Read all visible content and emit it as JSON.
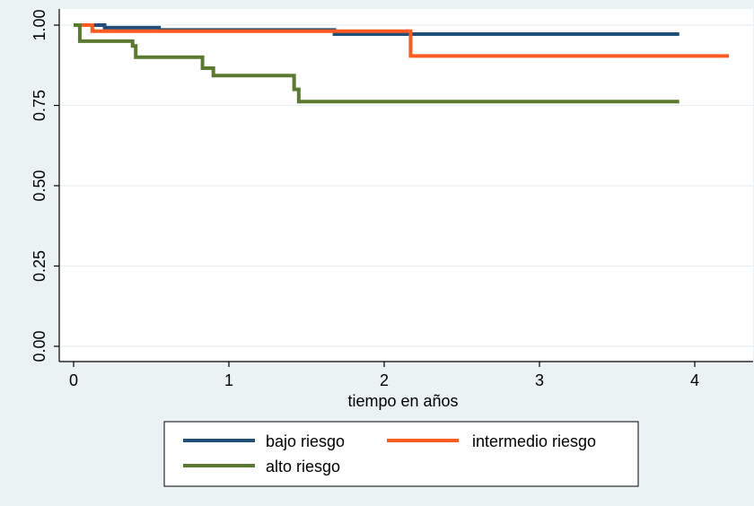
{
  "chart_data": {
    "type": "line",
    "title": "",
    "xlabel": "tiempo en años",
    "ylabel": "",
    "xlim": [
      0,
      4.25
    ],
    "ylim": [
      0,
      1
    ],
    "x_ticks": [
      "0",
      "1",
      "2",
      "3",
      "4"
    ],
    "y_ticks": [
      "0.00",
      "0.25",
      "0.50",
      "0.75",
      "1.00"
    ],
    "grid": true,
    "legend_placement": "bottom",
    "series": [
      {
        "name": "bajo riesgo",
        "color": "#1f4e79",
        "steps": [
          [
            0,
            1.0
          ],
          [
            0.2,
            0.992
          ],
          [
            0.55,
            0.985
          ],
          [
            1.68,
            0.972
          ],
          [
            3.9,
            0.972
          ]
        ]
      },
      {
        "name": "intermedio riesgo",
        "color": "#ff5a1f",
        "steps": [
          [
            0,
            1.0
          ],
          [
            0.12,
            0.981
          ],
          [
            2.17,
            0.904
          ],
          [
            4.22,
            0.904
          ]
        ]
      },
      {
        "name": "alto riesgo",
        "color": "#5b7a2f",
        "steps": [
          [
            0,
            1.0
          ],
          [
            0.04,
            0.95
          ],
          [
            0.38,
            0.935
          ],
          [
            0.4,
            0.9
          ],
          [
            0.83,
            0.866
          ],
          [
            0.9,
            0.843
          ],
          [
            1.42,
            0.8
          ],
          [
            1.45,
            0.762
          ],
          [
            3.9,
            0.762
          ]
        ]
      }
    ]
  }
}
